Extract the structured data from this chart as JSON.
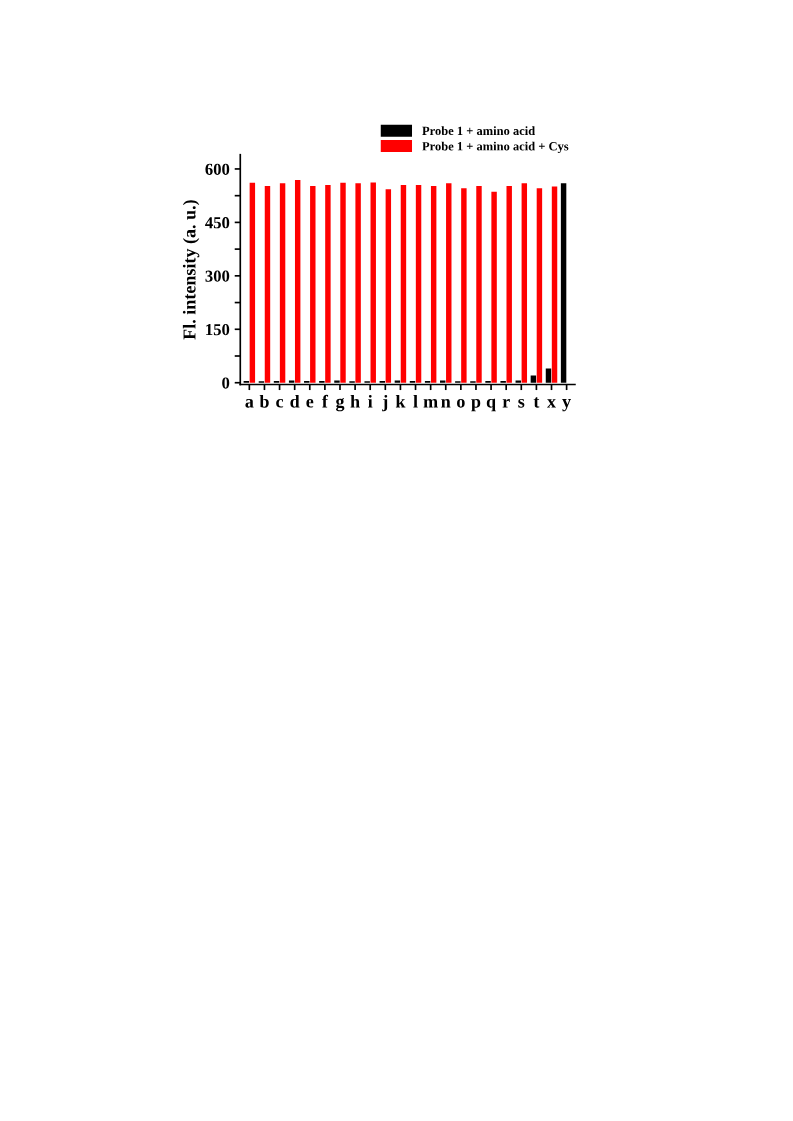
{
  "chart_data": {
    "type": "bar",
    "ylabel": "Fl. intensity (a. u.)",
    "categories": [
      "a",
      "b",
      "c",
      "d",
      "e",
      "f",
      "g",
      "h",
      "i",
      "j",
      "k",
      "l",
      "m",
      "n",
      "o",
      "p",
      "q",
      "r",
      "s",
      "t",
      "x",
      "y"
    ],
    "series": [
      {
        "name": "Probe 1 + amino acid",
        "color": "#000000",
        "values": [
          5,
          4,
          5,
          6,
          5,
          5,
          6,
          4,
          4,
          5,
          6,
          5,
          5,
          6,
          4,
          4,
          5,
          5,
          6,
          20,
          40,
          560
        ]
      },
      {
        "name": "Probe 1 + amino acid + Cys",
        "color": "#ff0000",
        "values": [
          561,
          552,
          560,
          569,
          552,
          555,
          561,
          560,
          562,
          543,
          555,
          555,
          552,
          560,
          546,
          552,
          536,
          552,
          560,
          546,
          551,
          null
        ]
      }
    ],
    "ylim": [
      -5,
      640
    ],
    "yticks": [
      0,
      {
        "value": 75,
        "label": null
      },
      150,
      {
        "value": 225,
        "label": null
      },
      300,
      {
        "value": 375,
        "label": null
      },
      450,
      {
        "value": 525,
        "label": null
      },
      600
    ],
    "legend": "top right",
    "grid": false
  }
}
